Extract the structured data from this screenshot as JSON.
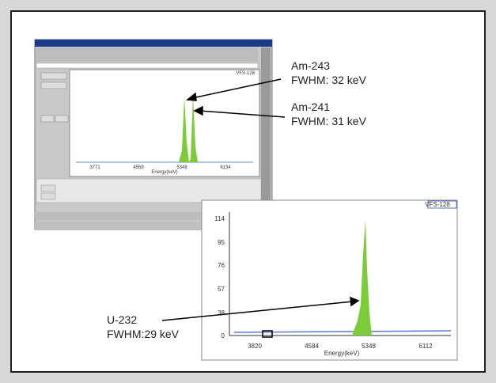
{
  "upper_window": {
    "tag": "VFS-128",
    "xticks": [
      "3771",
      "4559",
      "5348",
      "6134"
    ],
    "x_label": "Energy(keV)"
  },
  "lower_window": {
    "tag": "VFS-128",
    "yticks": [
      "114",
      "95",
      "76",
      "57",
      "38",
      "0"
    ],
    "xticks": [
      "3820",
      "4584",
      "5348",
      "6112"
    ],
    "x_label": "Energy(keV)"
  },
  "annotations": [
    {
      "label": "Am-243",
      "detail": "FWHM: 32 keV"
    },
    {
      "label": "Am-241",
      "detail": "FWHM: 31 keV"
    },
    {
      "label": "U-232",
      "detail": "FWHM:29 keV"
    }
  ]
}
